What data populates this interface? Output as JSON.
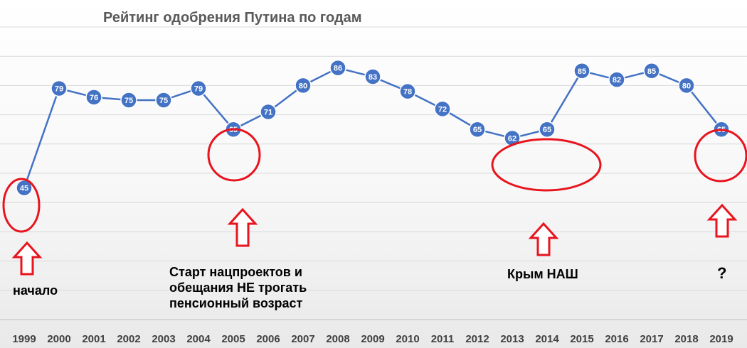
{
  "title": "Рейтинг одобрения Путина по годам",
  "chart_data": {
    "type": "line",
    "title": "Рейтинг одобрения Путина по годам",
    "x": [
      "1999",
      "2000",
      "2001",
      "2002",
      "2003",
      "2004",
      "2005",
      "2006",
      "2007",
      "2008",
      "2009",
      "2010",
      "2011",
      "2012",
      "2013",
      "2014",
      "2015",
      "2016",
      "2017",
      "2018",
      "2019"
    ],
    "series": [
      {
        "values": [
          45,
          79,
          76,
          75,
          75,
          79,
          65,
          71,
          80,
          86,
          83,
          78,
          72,
          65,
          62,
          65,
          85,
          82,
          85,
          80,
          65
        ]
      }
    ],
    "ylim": [
      0,
      100
    ],
    "grid": true,
    "data_labels": true,
    "line_color": "#4472C4",
    "marker_color": "#4472C4",
    "highlight_color": "#E8141E"
  },
  "annotations": [
    {
      "id": "start",
      "lines": [
        "начало"
      ]
    },
    {
      "id": "projects",
      "lines": [
        "Старт нацпроектов и",
        "обещания НЕ трогать",
        "пенсионный возраст"
      ]
    },
    {
      "id": "crimea",
      "lines": [
        "Крым НАШ"
      ]
    },
    {
      "id": "question",
      "lines": [
        "?"
      ]
    }
  ]
}
